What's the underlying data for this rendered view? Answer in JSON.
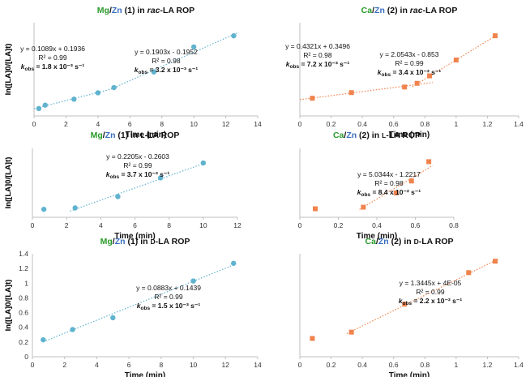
{
  "colors": {
    "mg_series": "#5fb3cf",
    "ca_series": "#f0834d",
    "mg_label": "#2a9a2a",
    "zn_label": "#3a6fc0",
    "ca_label": "#2a9a2a"
  },
  "chart_data": [
    {
      "type": "scatter",
      "title": {
        "metal": "Mg",
        "slash": "/",
        "zn": "Zn",
        "rest": " (1) in ",
        "monomer": "rac",
        "tail": "-LA ROP"
      },
      "xlabel": "Time (min)",
      "ylabel": "ln([LA]0/[LA]t)",
      "xlim": [
        0,
        14
      ],
      "ylim": [
        0,
        2.5
      ],
      "xticks": [
        0,
        2,
        4,
        6,
        8,
        10,
        12,
        14
      ],
      "yticks": [],
      "marker": "circle",
      "points": [
        [
          0.3,
          0.2
        ],
        [
          0.7,
          0.29
        ],
        [
          2.5,
          0.45
        ],
        [
          4,
          0.62
        ],
        [
          5,
          0.76
        ],
        [
          7.5,
          1.18
        ],
        [
          10,
          1.85
        ],
        [
          12.5,
          2.15
        ]
      ],
      "fits": [
        {
          "slope": 0.1089,
          "intercept": 0.1936,
          "x0": 0,
          "x1": 5.2
        },
        {
          "slope": 0.1903,
          "intercept": -0.1952,
          "x0": 5.0,
          "x1": 12.8
        }
      ],
      "annotations": [
        {
          "eq": "y = 0.1089x + 0.1936",
          "r2": "R² = 0.99",
          "k_label": "k",
          "k_sub": "obs",
          "k_value": " = 1.8 x 10⁻³ s⁻¹"
        },
        {
          "eq": "y = 0.1903x - 0.1952",
          "r2": "R² = 0.98",
          "k_label": "k",
          "k_sub": "obs",
          "k_value": " = 3.2 x 10⁻³ s⁻¹"
        }
      ]
    },
    {
      "type": "scatter",
      "title": {
        "metal": "Ca",
        "slash": "/",
        "zn": "Zn",
        "rest": " (2) in ",
        "monomer": "rac",
        "tail": "-LA ROP"
      },
      "xlabel": "Time (min)",
      "ylabel": "ln([LA]0/[LA]t)",
      "xlim": [
        0,
        1.4
      ],
      "ylim": [
        0,
        2.0
      ],
      "xticks": [
        0,
        0.2,
        0.4,
        0.6,
        0.8,
        1,
        1.2,
        1.4
      ],
      "yticks": [],
      "marker": "square",
      "points": [
        [
          0.08,
          0.38
        ],
        [
          0.33,
          0.5
        ],
        [
          0.67,
          0.62
        ],
        [
          0.75,
          0.7
        ],
        [
          0.83,
          0.86
        ],
        [
          1.0,
          1.2
        ],
        [
          1.25,
          1.72
        ]
      ],
      "fits": [
        {
          "slope": 0.4321,
          "intercept": 0.3496,
          "x0": 0.0,
          "x1": 0.85
        },
        {
          "slope": 2.0543,
          "intercept": -0.853,
          "x0": 0.72,
          "x1": 1.25
        }
      ],
      "annotations": [
        {
          "eq": "y = 0.4321x + 0.3496",
          "r2": "R² = 0.98",
          "k_label": "k",
          "k_sub": "obs",
          "k_value": " = 7.2 x 10⁻³ s⁻¹"
        },
        {
          "eq": "y = 2.0543x - 0.853",
          "r2": "R² = 0.99",
          "k_label": "k",
          "k_sub": "obs",
          "k_value": " = 3.4 x 10⁻² s⁻¹"
        }
      ]
    },
    {
      "type": "scatter",
      "title": {
        "metal": "Mg",
        "slash": "/",
        "zn": "Zn",
        "rest": " (1) in ",
        "monomer": "L",
        "tail": "-LA ROP"
      },
      "xlabel": "Time (min)",
      "ylabel": "ln([LA]0/[LA]t)",
      "xlim": [
        0,
        12
      ],
      "ylim": [
        0,
        2.5
      ],
      "xticks": [
        0,
        2,
        4,
        6,
        8,
        10,
        12
      ],
      "yticks": [],
      "marker": "circle",
      "points": [
        [
          0.67,
          0.29
        ],
        [
          2.5,
          0.34
        ],
        [
          5,
          0.75
        ],
        [
          7.5,
          1.43
        ],
        [
          10,
          1.97
        ]
      ],
      "fits": [
        {
          "slope": 0.2205,
          "intercept": -0.2603,
          "x0": 2.2,
          "x1": 10.0
        }
      ],
      "annotations": [
        {
          "eq": "y = 0.2205x - 0.2603",
          "r2": "R² = 0.99",
          "k_label": "k",
          "k_sub": "obs",
          "k_value": " = 3.7 x 10⁻³ s⁻¹"
        }
      ]
    },
    {
      "type": "scatter",
      "title": {
        "metal": "Ca",
        "slash": "/",
        "zn": "Zn",
        "rest": " (2) in ",
        "monomer": "L",
        "tail": "-LA ROP"
      },
      "xlabel": "Time (min)",
      "ylabel": "ln([LA]0/[LA]t)",
      "xlim": [
        0,
        0.8
      ],
      "ylim": [
        0,
        3.0
      ],
      "xticks": [
        0,
        0.2,
        0.4,
        0.6,
        0.8
      ],
      "yticks": [],
      "marker": "square",
      "points": [
        [
          0.08,
          0.37
        ],
        [
          0.33,
          0.44
        ],
        [
          0.5,
          1.06
        ],
        [
          0.58,
          1.58
        ],
        [
          0.67,
          2.42
        ]
      ],
      "fits": [
        {
          "slope": 5.0344,
          "intercept": -1.2217,
          "x0": 0.31,
          "x1": 0.69
        }
      ],
      "annotations": [
        {
          "eq": "y = 5.0344x - 1.2217",
          "r2": "R² = 0.98",
          "k_label": "k",
          "k_sub": "obs",
          "k_value": " = 8.4 x 10⁻² s⁻¹"
        }
      ]
    },
    {
      "type": "scatter",
      "title": {
        "metal": "Mg",
        "slash": "/",
        "zn": "Zn",
        "rest": " (1) in ",
        "monomer": "D",
        "tail": "-LA ROP"
      },
      "xlabel": "Time (min)",
      "ylabel": "ln([LA]0/[LA]t)",
      "xlim": [
        0,
        14
      ],
      "ylim": [
        0,
        1.4
      ],
      "xticks": [
        0,
        2,
        4,
        6,
        8,
        10,
        12,
        14
      ],
      "yticks": [
        0,
        0.2,
        0.4,
        0.6,
        0.8,
        1,
        1.2,
        1.4
      ],
      "marker": "circle",
      "points": [
        [
          0.67,
          0.23
        ],
        [
          2.5,
          0.37
        ],
        [
          5,
          0.53
        ],
        [
          10,
          1.03
        ],
        [
          12.5,
          1.27
        ]
      ],
      "fits": [
        {
          "slope": 0.0883,
          "intercept": 0.1439,
          "x0": 0.67,
          "x1": 12.6
        }
      ],
      "annotations": [
        {
          "eq": "y = 0.0883x + 0.1439",
          "r2": "R² = 0.99",
          "k_label": "k",
          "k_sub": "obs",
          "k_value": " = 1.5 x 10⁻³ s⁻¹"
        }
      ]
    },
    {
      "type": "scatter",
      "title": {
        "metal": "Ca",
        "slash": "/",
        "zn": "Zn",
        "rest": " (2) in ",
        "monomer": "D",
        "tail": "-LA ROP"
      },
      "xlabel": "Time (min)",
      "ylabel": "ln([LA]0/[LA]t)",
      "xlim": [
        0,
        1.4
      ],
      "ylim": [
        0,
        1.8
      ],
      "xticks": [
        0,
        0.2,
        0.4,
        0.6,
        0.8,
        1,
        1.2,
        1.4
      ],
      "yticks": [],
      "marker": "square",
      "points": [
        [
          0.08,
          0.32
        ],
        [
          0.33,
          0.43
        ],
        [
          0.67,
          0.92
        ],
        [
          1.08,
          1.47
        ],
        [
          1.25,
          1.67
        ]
      ],
      "fits": [
        {
          "slope": 1.3445,
          "intercept": 4e-05,
          "x0": 0.3,
          "x1": 1.27
        }
      ],
      "annotations": [
        {
          "eq": "y = 1.3445x + 4E-05",
          "r2": "R² = 0.99",
          "k_label": "k",
          "k_sub": "obs",
          "k_value": " = 2.2 x 10⁻² s⁻¹"
        }
      ]
    }
  ]
}
